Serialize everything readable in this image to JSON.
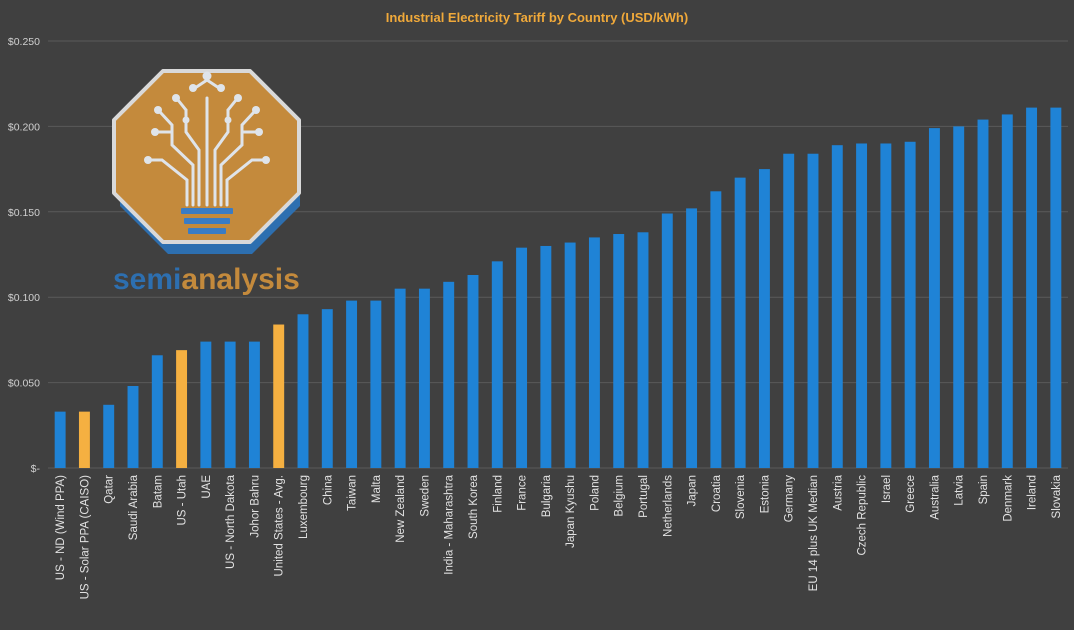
{
  "colors": {
    "background": "#404040",
    "bar_default": "#1f83d6",
    "bar_highlight": "#f5b041",
    "title": "#f0a93a",
    "grid": "#5a5a5a",
    "tick_text": "#d0d0d0",
    "logo_gold": "#c48a3c",
    "logo_blue": "#2d6fb0"
  },
  "logo": {
    "part1": "semi",
    "part2": "analysis"
  },
  "chart_data": {
    "type": "bar",
    "title": "Industrial Electricity Tariff by Country (USD/kWh)",
    "xlabel": "",
    "ylabel": "",
    "ylim": [
      0,
      0.25
    ],
    "yticks": [
      0,
      0.05,
      0.1,
      0.15,
      0.2,
      0.25
    ],
    "ytick_labels": [
      "$-",
      "$0.050",
      "$0.100",
      "$0.150",
      "$0.200",
      "$0.250"
    ],
    "grid": true,
    "legend": "none",
    "categories": [
      "US - ND (Wind PPA)",
      "US - Solar PPA (CAISO)",
      "Qatar",
      "Saudi Arabia",
      "Batam",
      "US - Utah",
      "UAE",
      "US - North Dakota",
      "Johor Bahru",
      "United States - Avg.",
      "Luxembourg",
      "China",
      "Taiwan",
      "Malta",
      "New Zealand",
      "Sweden",
      "India - Maharashtra",
      "South Korea",
      "Finland",
      "France",
      "Bulgaria",
      "Japan Kyushu",
      "Poland",
      "Belgium",
      "Portugal",
      "Netherlands",
      "Japan",
      "Croatia",
      "Slovenia",
      "Estonia",
      "Germany",
      "EU 14 plus UK Median",
      "Austria",
      "Czech Republic",
      "Israel",
      "Greece",
      "Australia",
      "Latvia",
      "Spain",
      "Denmark",
      "Ireland",
      "Slovakia"
    ],
    "values": [
      0.033,
      0.033,
      0.037,
      0.048,
      0.066,
      0.069,
      0.074,
      0.074,
      0.074,
      0.084,
      0.09,
      0.093,
      0.098,
      0.098,
      0.105,
      0.105,
      0.109,
      0.113,
      0.121,
      0.129,
      0.13,
      0.132,
      0.135,
      0.137,
      0.138,
      0.149,
      0.152,
      0.162,
      0.17,
      0.175,
      0.184,
      0.184,
      0.189,
      0.19,
      0.19,
      0.191,
      0.199,
      0.2,
      0.204,
      0.207,
      0.211,
      0.211
    ],
    "highlighted": [
      "US - Solar PPA (CAISO)",
      "US - Utah",
      "United States - Avg."
    ]
  }
}
